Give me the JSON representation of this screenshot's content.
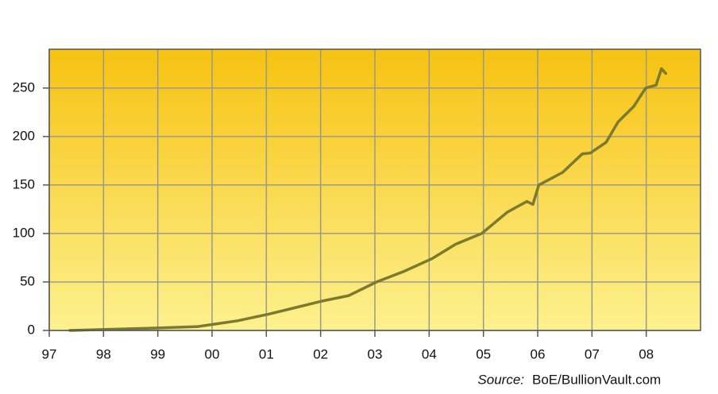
{
  "chart_data": {
    "type": "line",
    "x": [
      1997.38,
      1999.0,
      1999.74,
      2000.04,
      2000.47,
      2001.06,
      2001.64,
      2002.0,
      2002.52,
      2003.03,
      2003.54,
      2004.05,
      2004.49,
      2004.97,
      2005.44,
      2005.8,
      2005.91,
      2006.02,
      2006.46,
      2006.82,
      2006.97,
      2007.26,
      2007.48,
      2007.77,
      2007.99,
      2008.18,
      2008.28,
      2008.36
    ],
    "values": [
      0,
      2.5,
      4,
      6.5,
      10,
      17,
      25,
      30,
      36,
      50,
      61,
      74,
      89,
      100,
      122,
      133,
      130,
      150,
      163,
      182,
      183,
      194,
      215,
      231,
      250,
      253,
      270,
      265
    ],
    "color": "#7b7a2e",
    "xlim": [
      1997,
      2009
    ],
    "xticks": [
      {
        "value": 1997,
        "label": "97"
      },
      {
        "value": 1998,
        "label": "98"
      },
      {
        "value": 1999,
        "label": "99"
      },
      {
        "value": 2000,
        "label": "00"
      },
      {
        "value": 2001,
        "label": "01"
      },
      {
        "value": 2002,
        "label": "02"
      },
      {
        "value": 2003,
        "label": "03"
      },
      {
        "value": 2004,
        "label": "04"
      },
      {
        "value": 2005,
        "label": "05"
      },
      {
        "value": 2006,
        "label": "06"
      },
      {
        "value": 2007,
        "label": "07"
      },
      {
        "value": 2008,
        "label": "08"
      }
    ],
    "ylim": [
      0,
      290
    ],
    "yticks": [
      0,
      50,
      100,
      150,
      200,
      250
    ],
    "grid": true,
    "source_label": "Source:",
    "source": "BoE/BullionVault.com"
  }
}
